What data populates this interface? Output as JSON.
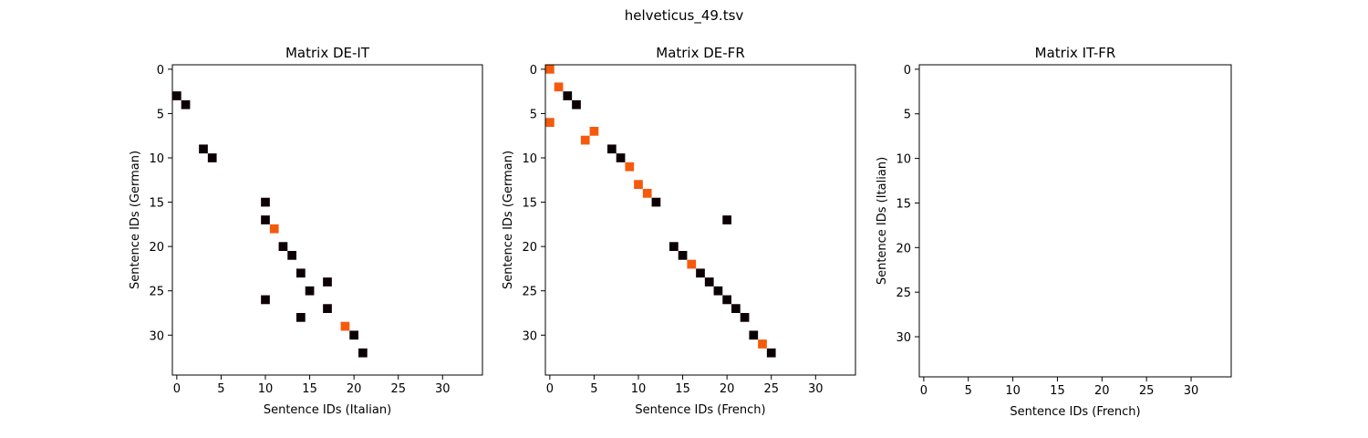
{
  "figure": {
    "title": "helveticus_49.tsv"
  },
  "colors": {
    "match": "#0d0004",
    "highlight": "#f55a0c",
    "frame": "#000000",
    "background": "#ffffff"
  },
  "chart_data": [
    {
      "type": "heatmap",
      "title": "Matrix DE-IT",
      "xlabel": "Sentence IDs (Italian)",
      "ylabel": "Sentence IDs (German)",
      "xlim": [
        -0.5,
        34.5
      ],
      "ylim": [
        34.5,
        -0.5
      ],
      "xticks": [
        0,
        5,
        10,
        15,
        20,
        25,
        30
      ],
      "yticks": [
        0,
        5,
        10,
        15,
        20,
        25,
        30
      ],
      "grid": false,
      "cells": [
        {
          "x": 0,
          "y": 3,
          "level": "dark"
        },
        {
          "x": 1,
          "y": 4,
          "level": "dark"
        },
        {
          "x": 3,
          "y": 9,
          "level": "dark"
        },
        {
          "x": 4,
          "y": 10,
          "level": "dark"
        },
        {
          "x": 10,
          "y": 15,
          "level": "dark"
        },
        {
          "x": 10,
          "y": 17,
          "level": "dark"
        },
        {
          "x": 11,
          "y": 18,
          "level": "orange"
        },
        {
          "x": 12,
          "y": 20,
          "level": "dark"
        },
        {
          "x": 13,
          "y": 21,
          "level": "dark"
        },
        {
          "x": 14,
          "y": 23,
          "level": "dark"
        },
        {
          "x": 17,
          "y": 24,
          "level": "dark"
        },
        {
          "x": 15,
          "y": 25,
          "level": "dark"
        },
        {
          "x": 10,
          "y": 26,
          "level": "dark"
        },
        {
          "x": 17,
          "y": 27,
          "level": "dark"
        },
        {
          "x": 14,
          "y": 28,
          "level": "dark"
        },
        {
          "x": 19,
          "y": 29,
          "level": "orange"
        },
        {
          "x": 20,
          "y": 30,
          "level": "dark"
        },
        {
          "x": 21,
          "y": 32,
          "level": "dark"
        }
      ]
    },
    {
      "type": "heatmap",
      "title": "Matrix DE-FR",
      "xlabel": "Sentence IDs (French)",
      "ylabel": "Sentence IDs (German)",
      "xlim": [
        -0.5,
        34.5
      ],
      "ylim": [
        34.5,
        -0.5
      ],
      "xticks": [
        0,
        5,
        10,
        15,
        20,
        25,
        30
      ],
      "yticks": [
        0,
        5,
        10,
        15,
        20,
        25,
        30
      ],
      "grid": false,
      "cells": [
        {
          "x": 0,
          "y": 0,
          "level": "orange"
        },
        {
          "x": 1,
          "y": 2,
          "level": "orange"
        },
        {
          "x": 2,
          "y": 3,
          "level": "dark"
        },
        {
          "x": 3,
          "y": 4,
          "level": "dark"
        },
        {
          "x": 0,
          "y": 6,
          "level": "orange"
        },
        {
          "x": 5,
          "y": 7,
          "level": "orange"
        },
        {
          "x": 4,
          "y": 8,
          "level": "orange"
        },
        {
          "x": 7,
          "y": 9,
          "level": "dark"
        },
        {
          "x": 8,
          "y": 10,
          "level": "dark"
        },
        {
          "x": 9,
          "y": 11,
          "level": "orange"
        },
        {
          "x": 10,
          "y": 13,
          "level": "orange"
        },
        {
          "x": 11,
          "y": 14,
          "level": "orange"
        },
        {
          "x": 12,
          "y": 15,
          "level": "dark"
        },
        {
          "x": 20,
          "y": 17,
          "level": "dark"
        },
        {
          "x": 14,
          "y": 20,
          "level": "dark"
        },
        {
          "x": 15,
          "y": 21,
          "level": "dark"
        },
        {
          "x": 16,
          "y": 22,
          "level": "orange"
        },
        {
          "x": 17,
          "y": 23,
          "level": "dark"
        },
        {
          "x": 18,
          "y": 24,
          "level": "dark"
        },
        {
          "x": 19,
          "y": 25,
          "level": "dark"
        },
        {
          "x": 20,
          "y": 26,
          "level": "dark"
        },
        {
          "x": 21,
          "y": 27,
          "level": "dark"
        },
        {
          "x": 22,
          "y": 28,
          "level": "dark"
        },
        {
          "x": 23,
          "y": 30,
          "level": "dark"
        },
        {
          "x": 24,
          "y": 31,
          "level": "orange"
        },
        {
          "x": 25,
          "y": 32,
          "level": "dark"
        }
      ]
    },
    {
      "type": "heatmap",
      "title": "Matrix IT-FR",
      "xlabel": "Sentence IDs (French)",
      "ylabel": "Sentence IDs (Italian)",
      "xlim": [
        -0.5,
        34.5
      ],
      "ylim": [
        34.5,
        -0.5
      ],
      "xticks": [
        0,
        5,
        10,
        15,
        20,
        25,
        30
      ],
      "yticks": [
        0,
        5,
        10,
        15,
        20,
        25,
        30
      ],
      "grid": false,
      "cells": []
    }
  ]
}
